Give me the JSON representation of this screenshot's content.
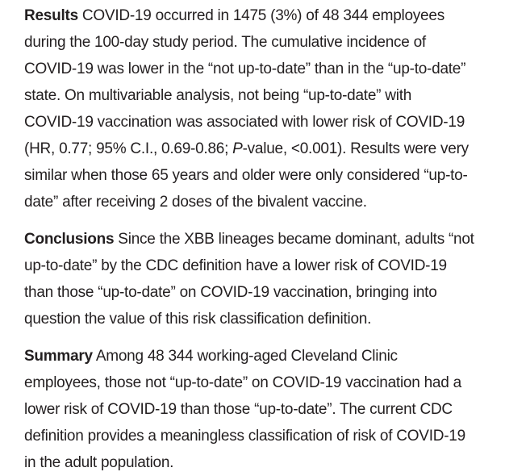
{
  "page": {
    "background_color": "#ffffff",
    "text_color": "#231f20"
  },
  "abstract": {
    "paragraphs": [
      {
        "label": "Results",
        "lines": [
          "COVID-19 occurred in 1475 (3%) of 48 344 employees",
          "during the 100-day study period. The cumulative incidence of",
          "COVID-19 was lower in the “not up-to-date” than in the “up-to-date”",
          "state. On multivariable analysis, not being “up-to-date” with",
          "COVID-19 vaccination was associated with lower risk of COVID-19",
          "(HR, 0.77; 95% C.I., 0.69-0.86; *P*-value, <0.001). Results were very",
          "similar when those 65 years and older were only considered “up-to-",
          "date” after receiving 2 doses of the bivalent vaccine."
        ]
      },
      {
        "label": "Conclusions",
        "lines": [
          "Since the XBB lineages became dominant, adults “not",
          "up-to-date” by the CDC definition have a lower risk of COVID-19",
          "than those “up-to-date” on COVID-19 vaccination, bringing into",
          "question the value of this risk classification definition."
        ]
      },
      {
        "label": "Summary",
        "lines": [
          "Among 48 344 working-aged Cleveland Clinic",
          "employees, those not “up-to-date” on COVID-19 vaccination had a",
          "lower risk of COVID-19 than those “up-to-date”. The current CDC",
          "definition provides a meaningless classification of risk of COVID-19",
          "in the adult population."
        ]
      }
    ]
  }
}
